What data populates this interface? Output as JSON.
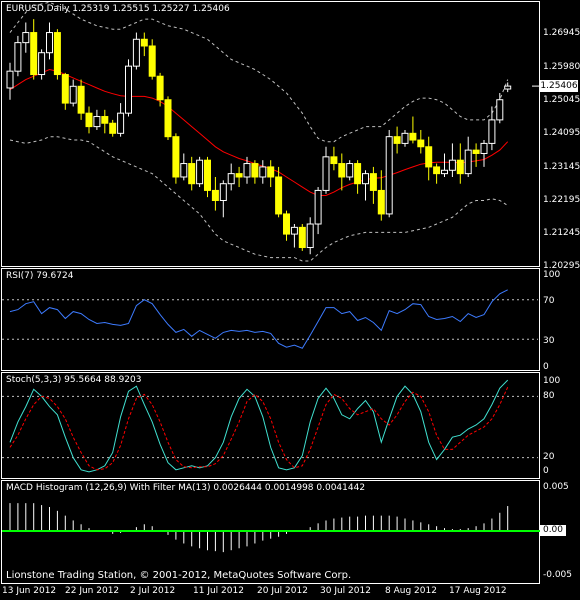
{
  "main": {
    "title": "EURUSD,Daily  1.25319 1.25515 1.25227 1.25406",
    "price_ticks": [
      "1.26945",
      "1.25980",
      "1.25045",
      "1.24095",
      "1.23145",
      "1.22195",
      "1.21245",
      "1.20295"
    ],
    "current_price": "1.25406",
    "colors": {
      "bull": "#ffffff",
      "bear": "#ffff00",
      "ma": "#ff0000",
      "bands": "#c0c0c0"
    }
  },
  "rsi": {
    "title": "RSI(7) 79.6724",
    "ticks": [
      "100",
      "70",
      "30",
      "0"
    ],
    "color": "#3d7bff"
  },
  "stoch": {
    "title": "Stoch(5,3,3) 95.5664 88.9203",
    "ticks": [
      "100",
      "80",
      "20",
      "0"
    ],
    "colors": {
      "main": "#40e0d0",
      "signal": "#ff0000"
    }
  },
  "macd": {
    "title": "MACD Histogram (12,26,9) With Filter MA(13) 0.0026444 0.0014998 0.0041442",
    "ticks": [
      "0.005",
      "-0.005"
    ],
    "zero_label": "0.00",
    "colors": {
      "bars": "#ffffff",
      "zero": "#00ff00"
    }
  },
  "footer": {
    "copyright": "Lionstone Trading Station, © 2001-2012, MetaQuotes Software Corp.",
    "dates": [
      "13 Jun 2012",
      "22 Jun 2012",
      "2 Jul 2012",
      "11 Jul 2012",
      "20 Jul 2012",
      "30 Jul 2012",
      "8 Aug 2012",
      "17 Aug 2012"
    ]
  },
  "chart_data": [
    {
      "type": "candlestick",
      "title": "EURUSD,Daily",
      "ohlc_last": {
        "open": 1.25319,
        "high": 1.25515,
        "low": 1.25227,
        "close": 1.25406
      },
      "ylim": [
        1.2005,
        1.2788
      ],
      "series": [
        {
          "name": "candles",
          "values": [
            [
              1.2535,
              1.261,
              1.25,
              1.2585
            ],
            [
              1.2585,
              1.269,
              1.257,
              1.267
            ],
            [
              1.267,
              1.273,
              1.264,
              1.27
            ],
            [
              1.27,
              1.274,
              1.256,
              1.2575
            ],
            [
              1.2575,
              1.265,
              1.256,
              1.264
            ],
            [
              1.264,
              1.273,
              1.262,
              1.27
            ],
            [
              1.27,
              1.271,
              1.256,
              1.2575
            ],
            [
              1.2575,
              1.258,
              1.247,
              1.249
            ],
            [
              1.249,
              1.256,
              1.248,
              1.254
            ],
            [
              1.254,
              1.256,
              1.244,
              1.246
            ],
            [
              1.246,
              1.248,
              1.24,
              1.242
            ],
            [
              1.242,
              1.247,
              1.241,
              1.245
            ],
            [
              1.245,
              1.247,
              1.24,
              1.243
            ],
            [
              1.243,
              1.244,
              1.239,
              1.24
            ],
            [
              1.24,
              1.249,
              1.239,
              1.246
            ],
            [
              1.246,
              1.262,
              1.245,
              1.26
            ],
            [
              1.26,
              1.27,
              1.259,
              1.268
            ],
            [
              1.268,
              1.27,
              1.263,
              1.266
            ],
            [
              1.266,
              1.268,
              1.256,
              1.257
            ],
            [
              1.257,
              1.258,
              1.248,
              1.25
            ],
            [
              1.25,
              1.251,
              1.238,
              1.239
            ],
            [
              1.239,
              1.24,
              1.225,
              1.227
            ],
            [
              1.227,
              1.234,
              1.226,
              1.231
            ],
            [
              1.231,
              1.233,
              1.223,
              1.225
            ],
            [
              1.225,
              1.233,
              1.224,
              1.232
            ],
            [
              1.232,
              1.233,
              1.221,
              1.223
            ],
            [
              1.223,
              1.227,
              1.217,
              1.22
            ],
            [
              1.22,
              1.226,
              1.215,
              1.225
            ],
            [
              1.225,
              1.231,
              1.223,
              1.228
            ],
            [
              1.228,
              1.23,
              1.224,
              1.227
            ],
            [
              1.227,
              1.233,
              1.225,
              1.231
            ],
            [
              1.231,
              1.232,
              1.225,
              1.227
            ],
            [
              1.227,
              1.232,
              1.225,
              1.23
            ],
            [
              1.23,
              1.232,
              1.224,
              1.227
            ],
            [
              1.227,
              1.23,
              1.215,
              1.216
            ],
            [
              1.216,
              1.217,
              1.208,
              1.21
            ],
            [
              1.21,
              1.213,
              1.206,
              1.212
            ],
            [
              1.212,
              1.213,
              1.205,
              1.206
            ],
            [
              1.206,
              1.215,
              1.204,
              1.213
            ],
            [
              1.213,
              1.224,
              1.21,
              1.223
            ],
            [
              1.223,
              1.236,
              1.222,
              1.233
            ],
            [
              1.233,
              1.236,
              1.229,
              1.231
            ],
            [
              1.231,
              1.234,
              1.223,
              1.227
            ],
            [
              1.227,
              1.232,
              1.226,
              1.231
            ],
            [
              1.231,
              1.232,
              1.222,
              1.225
            ],
            [
              1.225,
              1.229,
              1.22,
              1.228
            ],
            [
              1.228,
              1.23,
              1.219,
              1.223
            ],
            [
              1.223,
              1.229,
              1.214,
              1.216
            ],
            [
              1.216,
              1.241,
              1.215,
              1.239
            ],
            [
              1.239,
              1.242,
              1.234,
              1.237
            ],
            [
              1.237,
              1.241,
              1.236,
              1.24
            ],
            [
              1.24,
              1.245,
              1.237,
              1.238
            ],
            [
              1.238,
              1.241,
              1.234,
              1.236
            ],
            [
              1.236,
              1.239,
              1.226,
              1.23
            ],
            [
              1.23,
              1.231,
              1.225,
              1.228
            ],
            [
              1.228,
              1.234,
              1.227,
              1.229
            ],
            [
              1.229,
              1.237,
              1.227,
              1.232
            ],
            [
              1.232,
              1.237,
              1.225,
              1.228
            ],
            [
              1.228,
              1.239,
              1.227,
              1.235
            ],
            [
              1.235,
              1.237,
              1.23,
              1.234
            ],
            [
              1.234,
              1.238,
              1.23,
              1.237
            ],
            [
              1.237,
              1.248,
              1.235,
              1.244
            ],
            [
              1.244,
              1.252,
              1.243,
              1.25
            ],
            [
              1.25319,
              1.25515,
              1.25227,
              1.25406
            ]
          ]
        },
        {
          "name": "ma",
          "values": [
            1.253,
            1.2545,
            1.256,
            1.257,
            1.258,
            1.259,
            1.2585,
            1.2575,
            1.2565,
            1.2555,
            1.2545,
            1.2535,
            1.2525,
            1.2518,
            1.2512,
            1.251,
            1.251,
            1.251,
            1.2505,
            1.2495,
            1.248,
            1.246,
            1.244,
            1.242,
            1.24,
            1.238,
            1.236,
            1.2345,
            1.2335,
            1.2325,
            1.2318,
            1.231,
            1.2302,
            1.2295,
            1.2285,
            1.227,
            1.2255,
            1.224,
            1.2225,
            1.2215,
            1.2215,
            1.2225,
            1.2238,
            1.2248,
            1.2255,
            1.2262,
            1.2266,
            1.2268,
            1.2275,
            1.2283,
            1.2292,
            1.23,
            1.2308,
            1.2312,
            1.2314,
            1.2314,
            1.2314,
            1.2312,
            1.2315,
            1.2318,
            1.2322,
            1.2335,
            1.235,
            1.2375
          ]
        },
        {
          "name": "upper",
          "values": [
            1.27,
            1.273,
            1.276,
            1.278,
            1.2785,
            1.279,
            1.278,
            1.277,
            1.2755,
            1.274,
            1.273,
            1.272,
            1.2715,
            1.271,
            1.271,
            1.272,
            1.273,
            1.274,
            1.274,
            1.273,
            1.272,
            1.2715,
            1.271,
            1.27,
            1.269,
            1.268,
            1.266,
            1.264,
            1.262,
            1.261,
            1.26,
            1.259,
            1.2575,
            1.256,
            1.254,
            1.252,
            1.249,
            1.246,
            1.242,
            1.2385,
            1.2375,
            1.2375,
            1.239,
            1.24,
            1.241,
            1.242,
            1.242,
            1.242,
            1.244,
            1.246,
            1.248,
            1.2495,
            1.2505,
            1.2505,
            1.25,
            1.249,
            1.247,
            1.245,
            1.244,
            1.244,
            1.244,
            1.246,
            1.25,
            1.256
          ]
        },
        {
          "name": "lower",
          "values": [
            1.238,
            1.2375,
            1.237,
            1.2375,
            1.238,
            1.239,
            1.239,
            1.2385,
            1.238,
            1.238,
            1.2375,
            1.236,
            1.2345,
            1.233,
            1.232,
            1.231,
            1.23,
            1.229,
            1.228,
            1.226,
            1.224,
            1.222,
            1.22,
            1.218,
            1.216,
            1.213,
            1.21,
            1.208,
            1.207,
            1.206,
            1.205,
            1.204,
            1.2035,
            1.203,
            1.203,
            1.203,
            1.203,
            1.202,
            1.202,
            1.204,
            1.206,
            1.2075,
            1.2085,
            1.2095,
            1.21,
            1.2105,
            1.2105,
            1.2105,
            1.2105,
            1.2105,
            1.2105,
            1.211,
            1.2115,
            1.212,
            1.213,
            1.214,
            1.215,
            1.217,
            1.219,
            1.22,
            1.22,
            1.2205,
            1.22,
            1.2185
          ]
        }
      ]
    },
    {
      "type": "line",
      "title": "RSI(7)",
      "ylim": [
        0,
        100
      ],
      "levels": [
        70,
        30
      ],
      "series": [
        {
          "name": "RSI(7)",
          "values": [
            58,
            60,
            66,
            68,
            56,
            62,
            60,
            51,
            58,
            56,
            50,
            46,
            47,
            45,
            44,
            46,
            64,
            70,
            66,
            55,
            45,
            37,
            40,
            33,
            39,
            35,
            31,
            37,
            39,
            38,
            39,
            37,
            38,
            36,
            26,
            22,
            24,
            21,
            34,
            48,
            62,
            62,
            56,
            58,
            49,
            52,
            47,
            39,
            59,
            56,
            60,
            66,
            65,
            53,
            50,
            51,
            53,
            48,
            56,
            52,
            55,
            68,
            76,
            80
          ]
        }
      ]
    },
    {
      "type": "line",
      "title": "Stoch(5,3,3)",
      "ylim": [
        0,
        100
      ],
      "levels": [
        80,
        20
      ],
      "series": [
        {
          "name": "main",
          "values": [
            35,
            55,
            70,
            87,
            80,
            70,
            62,
            40,
            20,
            8,
            6,
            8,
            12,
            25,
            60,
            85,
            90,
            72,
            55,
            33,
            15,
            8,
            10,
            12,
            10,
            12,
            20,
            35,
            60,
            78,
            87,
            80,
            60,
            30,
            10,
            8,
            10,
            22,
            55,
            78,
            88,
            78,
            62,
            58,
            68,
            76,
            65,
            35,
            58,
            80,
            90,
            82,
            65,
            35,
            18,
            28,
            40,
            42,
            48,
            52,
            58,
            72,
            88,
            96
          ]
        },
        {
          "name": "signal",
          "values": [
            30,
            42,
            58,
            72,
            80,
            78,
            70,
            58,
            40,
            25,
            12,
            8,
            9,
            15,
            32,
            58,
            78,
            82,
            72,
            55,
            35,
            18,
            11,
            10,
            11,
            11,
            14,
            22,
            38,
            55,
            75,
            82,
            75,
            58,
            35,
            18,
            10,
            12,
            28,
            50,
            72,
            82,
            78,
            68,
            62,
            65,
            68,
            58,
            52,
            62,
            75,
            84,
            80,
            65,
            42,
            28,
            28,
            35,
            42,
            46,
            50,
            58,
            72,
            89
          ]
        }
      ]
    },
    {
      "type": "bar",
      "title": "MACD Histogram (12,26,9) With Filter MA(13)",
      "ylim": [
        -0.005,
        0.005
      ],
      "series": [
        {
          "name": "histogram",
          "values": [
            0.0029,
            0.0029,
            0.0029,
            0.0029,
            0.0027,
            0.0025,
            0.0021,
            0.0016,
            0.0011,
            0.0007,
            0.0003,
            0.0001,
            -0.0001,
            -0.0003,
            -0.0002,
            0.0001,
            0.0004,
            0.0007,
            0.0005,
            0.0001,
            -0.0004,
            -0.0009,
            -0.0013,
            -0.0016,
            -0.0018,
            -0.002,
            -0.0021,
            -0.0022,
            -0.002,
            -0.0018,
            -0.0016,
            -0.0013,
            -0.001,
            -0.0008,
            -0.0006,
            -0.0003,
            -0.0001,
            0.0001,
            0.0004,
            0.0008,
            0.0011,
            0.0013,
            0.0014,
            0.0015,
            0.0015,
            0.0016,
            0.0016,
            0.0016,
            0.0016,
            0.0015,
            0.0013,
            0.0011,
            0.0009,
            0.0007,
            0.0005,
            0.0003,
            0.0002,
            0.0002,
            0.0003,
            0.0005,
            0.0008,
            0.0013,
            0.0019,
            0.0026
          ]
        }
      ]
    }
  ]
}
